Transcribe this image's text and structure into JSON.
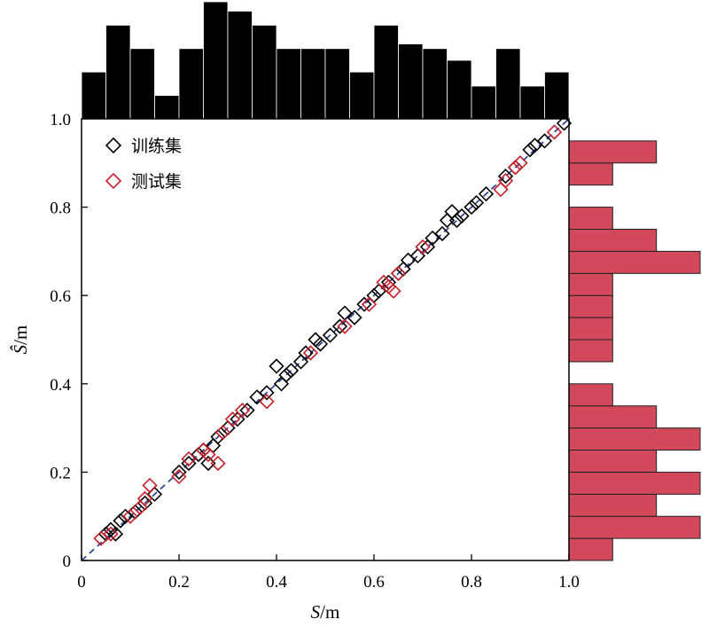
{
  "chart_data": {
    "type": "scatter",
    "title": "",
    "xlabel_var": "S",
    "xlabel_unit": "/m",
    "ylabel_var": "Ŝ",
    "ylabel_unit": "/m",
    "xlim": [
      0,
      1.0
    ],
    "ylim": [
      0,
      1.0
    ],
    "x_ticks": [
      "0",
      "0.2",
      "0.4",
      "0.6",
      "0.8",
      "1.0"
    ],
    "y_ticks": [
      "0",
      "0.2",
      "0.4",
      "0.6",
      "0.8",
      "1.0"
    ],
    "grid": false,
    "legend_position": "top-left",
    "reference_line": {
      "from": [
        0,
        0
      ],
      "to": [
        1,
        1
      ],
      "style": "dashed",
      "color": "#1f3a93"
    },
    "series": [
      {
        "name": "训练集",
        "marker": "diamond",
        "color": "#000000",
        "points": [
          [
            0.05,
            0.06
          ],
          [
            0.06,
            0.07
          ],
          [
            0.07,
            0.06
          ],
          [
            0.08,
            0.09
          ],
          [
            0.09,
            0.1
          ],
          [
            0.11,
            0.11
          ],
          [
            0.13,
            0.13
          ],
          [
            0.15,
            0.15
          ],
          [
            0.2,
            0.2
          ],
          [
            0.22,
            0.22
          ],
          [
            0.24,
            0.24
          ],
          [
            0.25,
            0.25
          ],
          [
            0.26,
            0.22
          ],
          [
            0.27,
            0.26
          ],
          [
            0.28,
            0.28
          ],
          [
            0.3,
            0.3
          ],
          [
            0.32,
            0.32
          ],
          [
            0.34,
            0.34
          ],
          [
            0.36,
            0.37
          ],
          [
            0.38,
            0.38
          ],
          [
            0.4,
            0.44
          ],
          [
            0.41,
            0.4
          ],
          [
            0.42,
            0.42
          ],
          [
            0.43,
            0.43
          ],
          [
            0.45,
            0.45
          ],
          [
            0.46,
            0.47
          ],
          [
            0.48,
            0.5
          ],
          [
            0.49,
            0.49
          ],
          [
            0.51,
            0.51
          ],
          [
            0.53,
            0.53
          ],
          [
            0.54,
            0.56
          ],
          [
            0.56,
            0.55
          ],
          [
            0.58,
            0.58
          ],
          [
            0.6,
            0.6
          ],
          [
            0.61,
            0.61
          ],
          [
            0.63,
            0.63
          ],
          [
            0.65,
            0.65
          ],
          [
            0.66,
            0.66
          ],
          [
            0.67,
            0.68
          ],
          [
            0.69,
            0.69
          ],
          [
            0.71,
            0.71
          ],
          [
            0.72,
            0.73
          ],
          [
            0.74,
            0.74
          ],
          [
            0.75,
            0.77
          ],
          [
            0.76,
            0.79
          ],
          [
            0.77,
            0.77
          ],
          [
            0.78,
            0.78
          ],
          [
            0.8,
            0.8
          ],
          [
            0.81,
            0.81
          ],
          [
            0.83,
            0.83
          ],
          [
            0.87,
            0.87
          ],
          [
            0.89,
            0.89
          ],
          [
            0.92,
            0.93
          ],
          [
            0.93,
            0.94
          ],
          [
            0.95,
            0.95
          ],
          [
            0.99,
            0.99
          ]
        ]
      },
      {
        "name": "测试集",
        "marker": "diamond",
        "color": "#c81e2a",
        "points": [
          [
            0.04,
            0.05
          ],
          [
            0.06,
            0.06
          ],
          [
            0.1,
            0.1
          ],
          [
            0.12,
            0.12
          ],
          [
            0.13,
            0.14
          ],
          [
            0.14,
            0.17
          ],
          [
            0.2,
            0.19
          ],
          [
            0.22,
            0.23
          ],
          [
            0.25,
            0.25
          ],
          [
            0.26,
            0.24
          ],
          [
            0.28,
            0.22
          ],
          [
            0.29,
            0.29
          ],
          [
            0.31,
            0.32
          ],
          [
            0.33,
            0.34
          ],
          [
            0.38,
            0.36
          ],
          [
            0.47,
            0.47
          ],
          [
            0.54,
            0.53
          ],
          [
            0.59,
            0.58
          ],
          [
            0.62,
            0.63
          ],
          [
            0.63,
            0.62
          ],
          [
            0.64,
            0.61
          ],
          [
            0.65,
            0.65
          ],
          [
            0.7,
            0.71
          ],
          [
            0.86,
            0.84
          ],
          [
            0.87,
            0.86
          ],
          [
            0.89,
            0.89
          ],
          [
            0.9,
            0.9
          ],
          [
            0.97,
            0.97
          ]
        ]
      }
    ],
    "top_histogram": {
      "color": "#000000",
      "bin_range": [
        0,
        1.0
      ],
      "counts": [
        2,
        4,
        3,
        1,
        3,
        5,
        4.6,
        4,
        3,
        3,
        3,
        2,
        4,
        3.2,
        3,
        2.5,
        1.4,
        3,
        1.4,
        2
      ]
    },
    "right_histogram": {
      "color": "#d1495b",
      "bin_range": [
        0,
        1.0
      ],
      "counts": [
        1,
        3,
        2,
        3,
        2,
        3,
        2,
        1,
        0,
        1,
        1,
        1,
        1,
        3,
        2,
        1,
        0,
        1,
        2,
        0
      ]
    }
  }
}
